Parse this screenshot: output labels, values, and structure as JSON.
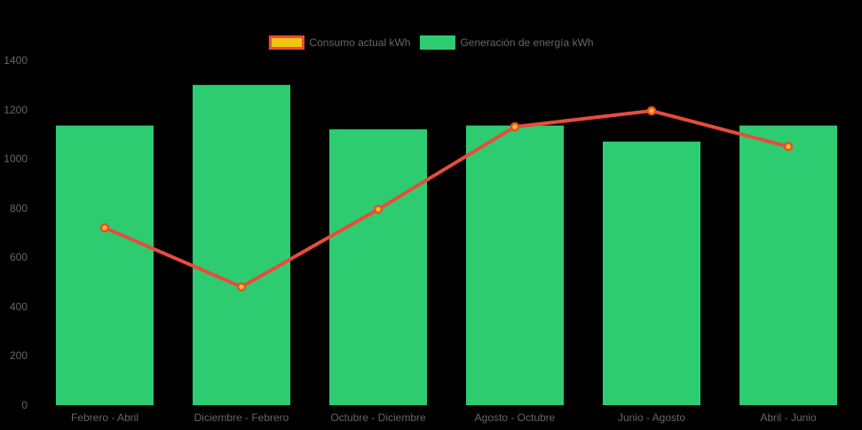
{
  "app": {
    "background_color": "#000000",
    "text_color": "#666666"
  },
  "legend": {
    "position": "top",
    "items": [
      {
        "label": "Consumo actual kWh",
        "swatch_fill": "#f1c40f",
        "swatch_border": "#e74c3c",
        "series_type": "line"
      },
      {
        "label": "Generación de energía kWh",
        "swatch_fill": "#2ecc71",
        "swatch_border": "#2ecc71",
        "series_type": "bar"
      }
    ]
  },
  "chart_data": {
    "type": "bar",
    "subtype": "bar-line-combo",
    "title": "",
    "xlabel": "",
    "ylabel": "",
    "categories": [
      "Febrero - Abril",
      "Diciembre - Febrero",
      "Octubre - Diciembre",
      "Agosto - Octubre",
      "Junio - Agosto",
      "Abril - Junio"
    ],
    "series": [
      {
        "name": "Consumo actual kWh",
        "type": "line",
        "line_color": "#e74c3c",
        "point_fill": "#f1c40f",
        "point_border": "#e74c3c",
        "values": [
          720,
          480,
          795,
          1130,
          1195,
          1050
        ]
      },
      {
        "name": "Generación de energía kWh",
        "type": "bar",
        "color": "#2ecc71",
        "values": [
          1135,
          1300,
          1120,
          1135,
          1070,
          1135
        ]
      }
    ],
    "ylim": [
      0,
      1400
    ],
    "yticks": [
      0,
      200,
      400,
      600,
      800,
      1000,
      1200,
      1400
    ],
    "grid": false,
    "legend_position": "top-center",
    "background": "#000000"
  }
}
